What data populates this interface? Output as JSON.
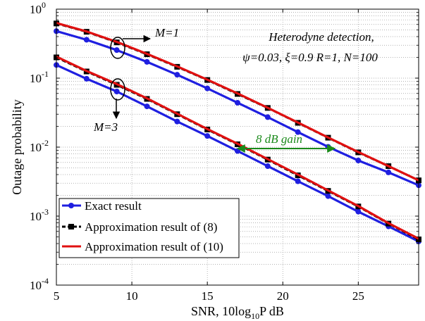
{
  "chart_data": {
    "type": "line",
    "xlabel": {
      "main": "SNR, 10log",
      "sub": "10",
      "tail": "P dB"
    },
    "ylabel": "Outage probability",
    "xlim": [
      5,
      29
    ],
    "ylim": [
      0.0001,
      1
    ],
    "yscale": "log",
    "xticks": [
      5,
      10,
      15,
      20,
      25
    ],
    "yticks": [
      {
        "value": 1,
        "base": "10",
        "exp": "0"
      },
      {
        "value": 0.1,
        "base": "10",
        "exp": "-1"
      },
      {
        "value": 0.01,
        "base": "10",
        "exp": "-2"
      },
      {
        "value": 0.001,
        "base": "10",
        "exp": "-3"
      },
      {
        "value": 0.0001,
        "base": "10",
        "exp": "-4"
      }
    ],
    "grid": true,
    "x": [
      5,
      7,
      9,
      11,
      13,
      15,
      17,
      19,
      21,
      23,
      25,
      27,
      29
    ],
    "series": [
      {
        "name": "Exact result",
        "group": "M=1",
        "color": "#1f1fe0",
        "marker": "circle",
        "style": "solid",
        "values": [
          0.48,
          0.36,
          0.255,
          0.172,
          0.112,
          0.071,
          0.044,
          0.0272,
          0.0165,
          0.0101,
          0.0064,
          0.0043,
          0.0028
        ]
      },
      {
        "name": "Approximation result of (8)",
        "group": "M=1",
        "color": "#000000",
        "marker": "square",
        "style": "dashed",
        "values": [
          0.62,
          0.47,
          0.33,
          0.222,
          0.146,
          0.094,
          0.059,
          0.037,
          0.0225,
          0.0137,
          0.0084,
          0.0053,
          0.0033
        ]
      },
      {
        "name": "Approximation result of (10)",
        "group": "M=1",
        "color": "#e01010",
        "marker": "none",
        "style": "solid",
        "values": [
          0.63,
          0.475,
          0.335,
          0.225,
          0.148,
          0.095,
          0.06,
          0.0372,
          0.0227,
          0.0138,
          0.0085,
          0.0053,
          0.0033
        ]
      },
      {
        "name": "Exact result",
        "group": "M=3",
        "color": "#1f1fe0",
        "marker": "circle",
        "style": "solid",
        "values": [
          0.155,
          0.098,
          0.064,
          0.039,
          0.0235,
          0.0145,
          0.0088,
          0.0053,
          0.0032,
          0.00195,
          0.00116,
          0.00071,
          0.00043
        ]
      },
      {
        "name": "Approximation result of (8)",
        "group": "M=3",
        "color": "#000000",
        "marker": "square",
        "style": "dashed",
        "values": [
          0.2,
          0.125,
          0.08,
          0.05,
          0.03,
          0.018,
          0.011,
          0.0066,
          0.0039,
          0.00232,
          0.00138,
          0.00078,
          0.00046
        ]
      },
      {
        "name": "Approximation result of (10)",
        "group": "M=3",
        "color": "#e01010",
        "marker": "none",
        "style": "solid",
        "values": [
          0.205,
          0.127,
          0.082,
          0.051,
          0.0305,
          0.0183,
          0.0112,
          0.0067,
          0.004,
          0.00236,
          0.0014,
          0.00079,
          0.00047
        ]
      }
    ],
    "legend": {
      "position": "bottom-left",
      "entries": [
        "Exact result",
        "Approximation result of (8)",
        "Approximation result of (10)"
      ]
    },
    "annotations": {
      "title_line1": "Heterodyne detection,",
      "title_line2": "ψ=0.03, ξ=0.9 R=1, N=100",
      "m1_label": "M=1",
      "m3_label": "M=3",
      "gain_label": "8 dB gain",
      "gain_color": "#1a8a1a",
      "gain_range": {
        "from": 17,
        "to": 23,
        "at": 0.0105
      },
      "m1_ellipse": {
        "x": 9,
        "y": 0.28
      },
      "m3_ellipse": {
        "x": 9,
        "y": 0.075
      }
    }
  }
}
